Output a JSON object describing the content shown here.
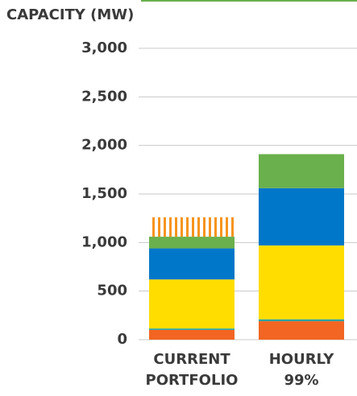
{
  "chart_data": {
    "type": "stacked_bar",
    "title": "CAPACITY (MW)",
    "categories": [
      "CURRENT PORTFOLIO",
      "HOURLY 99%"
    ],
    "series": [
      {
        "color": "#f26522",
        "values": [
          100,
          190
        ]
      },
      {
        "color": "#2aa3a3",
        "values": [
          15,
          20
        ]
      },
      {
        "color": "#ffdd00",
        "values": [
          505,
          760
        ]
      },
      {
        "color": "#0077c8",
        "values": [
          320,
          590
        ]
      },
      {
        "color": "#6ab04c",
        "values": [
          120,
          350
        ]
      },
      {
        "color": "#f7941d",
        "pattern": "hatch",
        "values": [
          200,
          0
        ]
      }
    ],
    "ylim": [
      0,
      3000
    ],
    "yticks": [
      0,
      {
        "value": 500,
        "label": "500"
      },
      {
        "value": 1000,
        "label": "1,000"
      },
      {
        "value": 1500,
        "label": "1,500"
      },
      {
        "value": 2000,
        "label": "2,000"
      },
      {
        "value": 2500,
        "label": "2,500"
      },
      {
        "value": 3000,
        "label": "3,000"
      }
    ],
    "grid": true
  }
}
